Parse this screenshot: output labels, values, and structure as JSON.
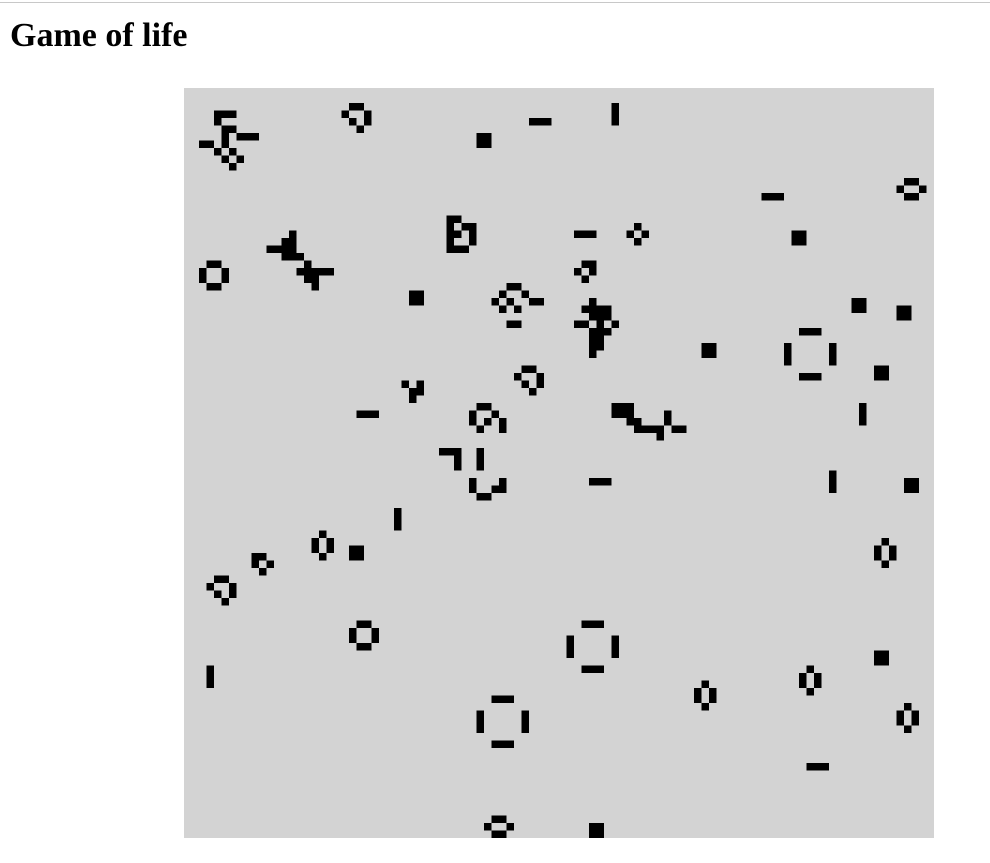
{
  "header": {
    "title": "Game of life"
  }
}
